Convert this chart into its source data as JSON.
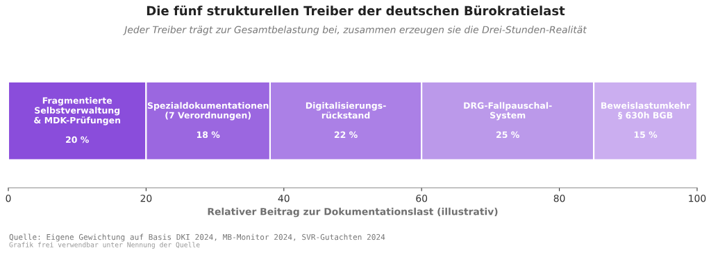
{
  "chart_data": {
    "type": "bar",
    "orientation": "horizontal",
    "stacked": true,
    "title": "Die fünf strukturellen Treiber der deutschen Bürokratielast",
    "subtitle": "Jeder Treiber trägt zur Gesamtbelastung bei, zusammen erzeugen sie die Drei-Stunden-Realität",
    "xlabel": "Relativer Beitrag zur Dokumentationslast (illustrativ)",
    "categories": [
      null
    ],
    "series": [
      {
        "name": "Fragmentierte\nSelbstverwaltung\n& MDK-Prüfungen",
        "color": "#8a4ddb",
        "values": [
          20
        ],
        "value_labels": [
          "20 %"
        ]
      },
      {
        "name": "Spezialdokumentationen\n(7 Verordnungen)",
        "color": "#9b67e0",
        "values": [
          18
        ],
        "value_labels": [
          "18 %"
        ]
      },
      {
        "name": "Digitalisierungs-\nrückstand",
        "color": "#ab80e6",
        "values": [
          22
        ],
        "value_labels": [
          "22 %"
        ]
      },
      {
        "name": "DRG-Fallpauschal-\nSystem",
        "color": "#bb99ea",
        "values": [
          25
        ],
        "value_labels": [
          "25 %"
        ]
      },
      {
        "name": "Beweislastumkehr\n§ 630h BGB",
        "color": "#cbaef0",
        "values": [
          15
        ],
        "value_labels": [
          "15 %"
        ]
      }
    ],
    "xlim": [
      0,
      100
    ],
    "xticks": [
      0,
      20,
      40,
      60,
      80,
      100
    ],
    "tick_labels": "x",
    "grid": false,
    "legend": false,
    "annotations": [
      "Quelle: Eigene Gewichtung auf Basis DKI 2024, MB-Monitor 2024, SVR-Gutachten 2024",
      "Grafik frei verwendbar unter Nennung der Quelle"
    ]
  }
}
